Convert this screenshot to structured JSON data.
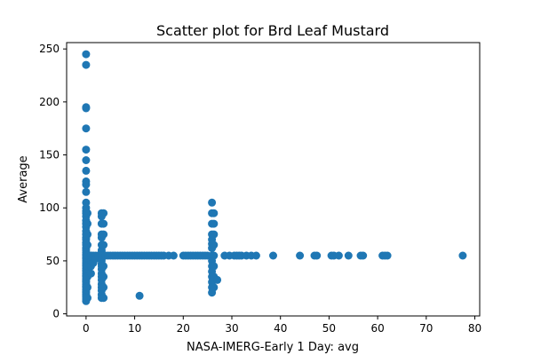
{
  "chart_data": {
    "type": "scatter",
    "title": "Scatter plot for Brd Leaf Mustard",
    "xlabel": "NASA-IMERG-Early 1 Day: avg",
    "ylabel": "Average",
    "xlim": [
      -4,
      81
    ],
    "ylim": [
      -2,
      256
    ],
    "xticks": [
      0,
      10,
      20,
      30,
      40,
      50,
      60,
      70,
      80
    ],
    "yticks": [
      0,
      50,
      100,
      150,
      200,
      250
    ],
    "xtick_labels": [
      "0",
      "10",
      "20",
      "30",
      "40",
      "50",
      "60",
      "70",
      "80"
    ],
    "ytick_labels": [
      "0",
      "50",
      "100",
      "150",
      "200",
      "250"
    ],
    "grid": false,
    "legend": "none",
    "marker_color": "#1f77b4",
    "points": [
      [
        0,
        245
      ],
      [
        0,
        235
      ],
      [
        0,
        195
      ],
      [
        0,
        194
      ],
      [
        0,
        175
      ],
      [
        0,
        155
      ],
      [
        0,
        145
      ],
      [
        0,
        135
      ],
      [
        0,
        125
      ],
      [
        0,
        122
      ],
      [
        0,
        115
      ],
      [
        0,
        105
      ],
      [
        0,
        100
      ],
      [
        0,
        97
      ],
      [
        0,
        95
      ],
      [
        0,
        92
      ],
      [
        0,
        88
      ],
      [
        0,
        85
      ],
      [
        0,
        82
      ],
      [
        0,
        78
      ],
      [
        0,
        75
      ],
      [
        0,
        72
      ],
      [
        0,
        70
      ],
      [
        0,
        67
      ],
      [
        0,
        65
      ],
      [
        0,
        62
      ],
      [
        0,
        60
      ],
      [
        0,
        58
      ],
      [
        0,
        56
      ],
      [
        0,
        55
      ],
      [
        0,
        53
      ],
      [
        0,
        52
      ],
      [
        0,
        50
      ],
      [
        0,
        48
      ],
      [
        0,
        46
      ],
      [
        0,
        45
      ],
      [
        0,
        43
      ],
      [
        0,
        41
      ],
      [
        0,
        40
      ],
      [
        0,
        38
      ],
      [
        0,
        36
      ],
      [
        0,
        35
      ],
      [
        0,
        33
      ],
      [
        0,
        31
      ],
      [
        0,
        30
      ],
      [
        0,
        28
      ],
      [
        0,
        26
      ],
      [
        0,
        25
      ],
      [
        0,
        23
      ],
      [
        0,
        21
      ],
      [
        0,
        20
      ],
      [
        0,
        18
      ],
      [
        0,
        16
      ],
      [
        0,
        14
      ],
      [
        0,
        12
      ],
      [
        0.3,
        95
      ],
      [
        0.3,
        85
      ],
      [
        0.3,
        75
      ],
      [
        0.3,
        65
      ],
      [
        0.3,
        55
      ],
      [
        0.3,
        45
      ],
      [
        0.3,
        35
      ],
      [
        0.3,
        25
      ],
      [
        0.3,
        15
      ],
      [
        1,
        55
      ],
      [
        1,
        50
      ],
      [
        1,
        47
      ],
      [
        1,
        45
      ],
      [
        1,
        38
      ],
      [
        1,
        55
      ],
      [
        1.5,
        55
      ],
      [
        1.5,
        48
      ],
      [
        2,
        55
      ],
      [
        2,
        52
      ],
      [
        2.5,
        55
      ],
      [
        3.2,
        95
      ],
      [
        3.2,
        92
      ],
      [
        3.2,
        85
      ],
      [
        3.2,
        75
      ],
      [
        3.2,
        72
      ],
      [
        3.2,
        65
      ],
      [
        3.2,
        60
      ],
      [
        3.2,
        58
      ],
      [
        3.2,
        55
      ],
      [
        3.2,
        52
      ],
      [
        3.2,
        50
      ],
      [
        3.2,
        47
      ],
      [
        3.2,
        45
      ],
      [
        3.2,
        42
      ],
      [
        3.2,
        38
      ],
      [
        3.2,
        35
      ],
      [
        3.2,
        32
      ],
      [
        3.2,
        28
      ],
      [
        3.2,
        25
      ],
      [
        3.2,
        22
      ],
      [
        3.2,
        18
      ],
      [
        3.2,
        15
      ],
      [
        3.6,
        95
      ],
      [
        3.6,
        85
      ],
      [
        3.6,
        75
      ],
      [
        3.6,
        65
      ],
      [
        3.6,
        55
      ],
      [
        3.6,
        45
      ],
      [
        3.6,
        35
      ],
      [
        3.6,
        25
      ],
      [
        3.6,
        15
      ],
      [
        4,
        55
      ],
      [
        4.5,
        55
      ],
      [
        5,
        55
      ],
      [
        5.5,
        55
      ],
      [
        6,
        55
      ],
      [
        6.5,
        55
      ],
      [
        7,
        55
      ],
      [
        7.5,
        55
      ],
      [
        8,
        55
      ],
      [
        8.5,
        55
      ],
      [
        9,
        55
      ],
      [
        9.5,
        55
      ],
      [
        10,
        55
      ],
      [
        10.5,
        55
      ],
      [
        11,
        55
      ],
      [
        11.5,
        55
      ],
      [
        12,
        55
      ],
      [
        12.5,
        55
      ],
      [
        13,
        55
      ],
      [
        13.5,
        55
      ],
      [
        14,
        55
      ],
      [
        14.5,
        55
      ],
      [
        15,
        55
      ],
      [
        15.5,
        55
      ],
      [
        16,
        55
      ],
      [
        17,
        55
      ],
      [
        18,
        55
      ],
      [
        11,
        17
      ],
      [
        20,
        55
      ],
      [
        20.5,
        55
      ],
      [
        21,
        55
      ],
      [
        21.5,
        55
      ],
      [
        22,
        55
      ],
      [
        22.5,
        55
      ],
      [
        23,
        55
      ],
      [
        23.5,
        55
      ],
      [
        24,
        55
      ],
      [
        24.5,
        55
      ],
      [
        25,
        55
      ],
      [
        25.9,
        105
      ],
      [
        25.9,
        95
      ],
      [
        25.9,
        85
      ],
      [
        25.9,
        75
      ],
      [
        25.9,
        70
      ],
      [
        25.9,
        66
      ],
      [
        25.9,
        62
      ],
      [
        25.9,
        55
      ],
      [
        25.9,
        50
      ],
      [
        25.9,
        45
      ],
      [
        25.9,
        40
      ],
      [
        25.9,
        35
      ],
      [
        25.9,
        30
      ],
      [
        25.9,
        25
      ],
      [
        25.9,
        20
      ],
      [
        26.3,
        95
      ],
      [
        26.3,
        85
      ],
      [
        26.3,
        75
      ],
      [
        26.3,
        65
      ],
      [
        26.3,
        55
      ],
      [
        26.3,
        45
      ],
      [
        26.3,
        35
      ],
      [
        26.3,
        25
      ],
      [
        27,
        32
      ],
      [
        28.5,
        55
      ],
      [
        29.5,
        55
      ],
      [
        30.5,
        55
      ],
      [
        31,
        55
      ],
      [
        31.5,
        55
      ],
      [
        32,
        55
      ],
      [
        33,
        55
      ],
      [
        34,
        55
      ],
      [
        35,
        55
      ],
      [
        38.5,
        55
      ],
      [
        44,
        55
      ],
      [
        47,
        55
      ],
      [
        47.5,
        55
      ],
      [
        50.5,
        55
      ],
      [
        51,
        55
      ],
      [
        52,
        55
      ],
      [
        54,
        55
      ],
      [
        56.5,
        55
      ],
      [
        57,
        55
      ],
      [
        61,
        55
      ],
      [
        61.5,
        55
      ],
      [
        62,
        55
      ],
      [
        77.5,
        55
      ]
    ]
  }
}
